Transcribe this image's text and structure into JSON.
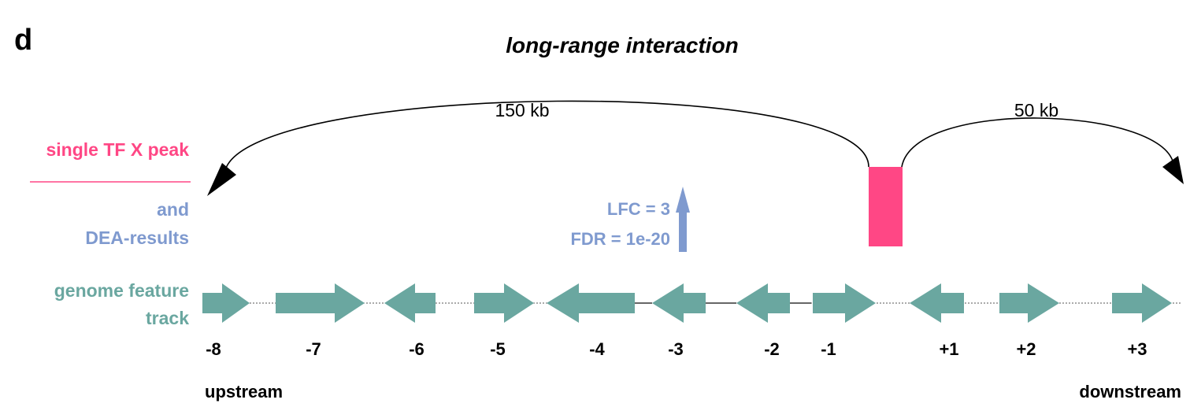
{
  "panel_letter": "d",
  "title": "long-range interaction",
  "distances": {
    "upstream": "150 kb",
    "downstream": "50 kb"
  },
  "track_labels": {
    "tf_peak": "single TF X peak",
    "dea_line1": "and",
    "dea_line2": "DEA-results",
    "genome_line1": "genome feature",
    "genome_line2": "track"
  },
  "dea": {
    "lfc": "LFC = 3",
    "fdr": "FDR = 1e-20"
  },
  "genes": [
    {
      "label": "-8",
      "strand": "+"
    },
    {
      "label": "-7",
      "strand": "+"
    },
    {
      "label": "-6",
      "strand": "-"
    },
    {
      "label": "-5",
      "strand": "+"
    },
    {
      "label": "-4",
      "strand": "-"
    },
    {
      "label": "-3",
      "strand": "-"
    },
    {
      "label": "-2",
      "strand": "-"
    },
    {
      "label": "-1",
      "strand": "+"
    },
    {
      "label": "+1",
      "strand": "-"
    },
    {
      "label": "+2",
      "strand": "+"
    },
    {
      "label": "+3",
      "strand": "+"
    }
  ],
  "direction": {
    "left": "upstream",
    "right": "downstream"
  },
  "colors": {
    "tf_peak": "#ff4785",
    "dea": "#7f9acf",
    "gene": "#6aa7a0",
    "text": "#000000"
  }
}
